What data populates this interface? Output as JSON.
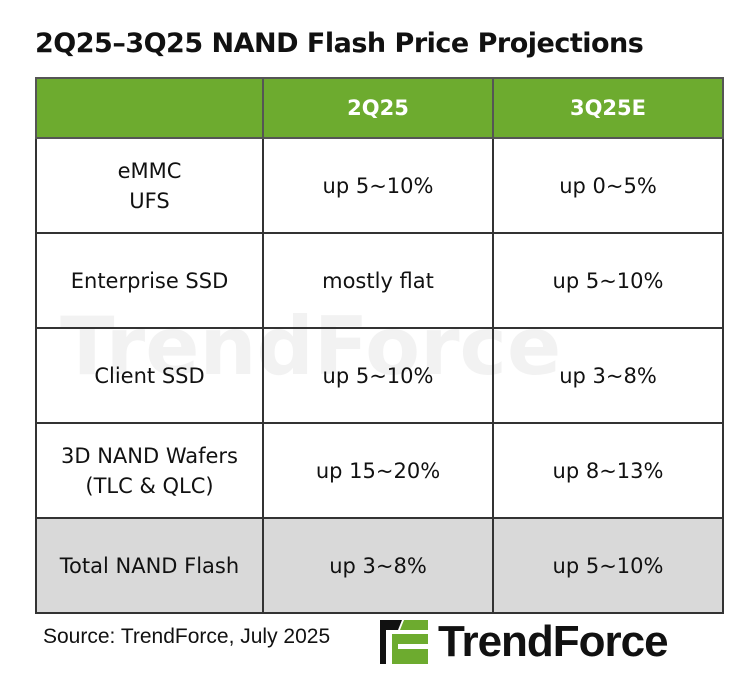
{
  "title": "2Q25–3Q25 NAND Flash Price Projections",
  "header": [
    "",
    "2Q25",
    "3Q25E"
  ],
  "rows": [
    {
      "label": [
        "eMMC",
        "UFS"
      ],
      "q2": "up 5~10%",
      "q3": "up 0~5%"
    },
    {
      "label": [
        "Enterprise SSD"
      ],
      "q2": "mostly flat",
      "q3": "up 5~10%"
    },
    {
      "label": [
        "Client SSD"
      ],
      "q2": "up 5~10%",
      "q3": "up 3~8%"
    },
    {
      "label": [
        "3D NAND Wafers",
        "(TLC & QLC)"
      ],
      "q2": "up 15~20%",
      "q3": "up 8~13%"
    },
    {
      "label": [
        "Total NAND Flash"
      ],
      "q2": "up 3~8%",
      "q3": "up 5~10%"
    }
  ],
  "source": "Source: TrendForce, July 2025",
  "logo": "TrendForce",
  "watermark": "TrendForce",
  "colors": {
    "header_green": "#6dab2f",
    "total_row_gray": "#d9d9d9"
  }
}
